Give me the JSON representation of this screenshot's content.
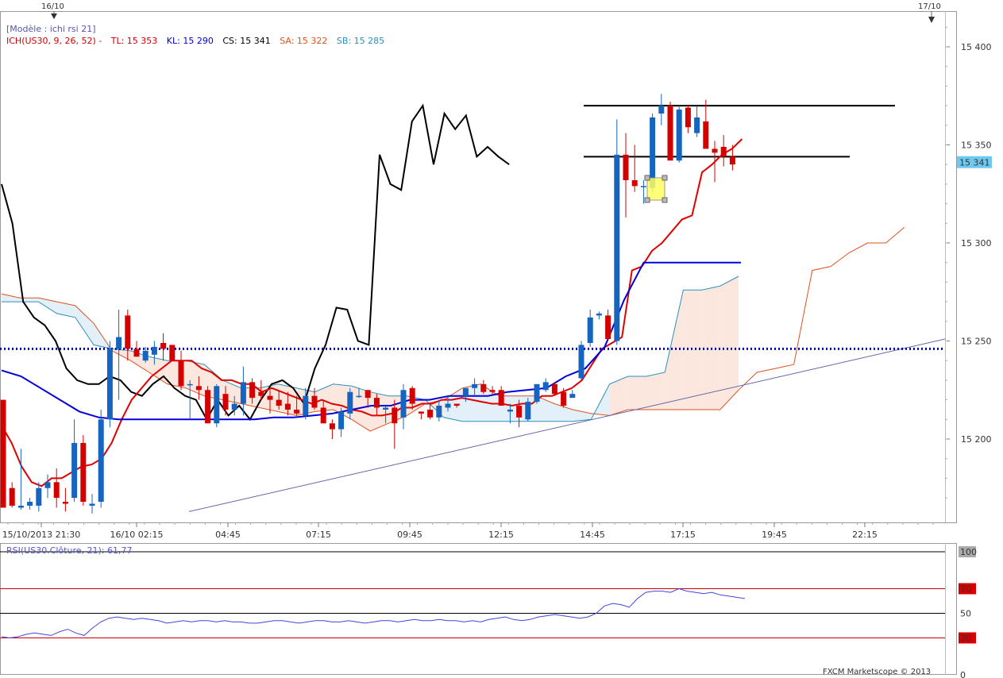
{
  "chart_data": [
    {
      "type": "candlestick",
      "legend_model": "[Modèle : ichi rsi 21]",
      "legend_items": [
        {
          "text": "ICH(US30, 9, 26, 52) -",
          "color": "#d40000"
        },
        {
          "text": "TL: 15 353",
          "color": "#d40000"
        },
        {
          "text": "KL: 15 290",
          "color": "#0000cc"
        },
        {
          "text": "CS: 15 341",
          "color": "#000000"
        },
        {
          "text": "SA: 15 322",
          "color": "#e05020"
        },
        {
          "text": "SB: 15 285",
          "color": "#2b8fc0"
        }
      ],
      "date_markers": [
        "16/10",
        "17/10"
      ],
      "x_ticks": [
        "15/10/2013 21:30",
        "16/10 02:15",
        "04:45",
        "07:15",
        "09:45",
        "12:15",
        "14:45",
        "17:15",
        "19:45",
        "22:15"
      ],
      "y_ticks": [
        "15 400",
        "15 350",
        "15 300",
        "15 250",
        "15 200"
      ],
      "y_tick_values": [
        15400,
        15350,
        15300,
        15250,
        15200
      ],
      "ylim": [
        15163,
        15420
      ],
      "current_price_label": "15 341",
      "current_price": 15341,
      "support_level": 15246,
      "resistance_lines": [
        15370,
        15344
      ],
      "bars_ohlc": [
        [
          15220,
          15220,
          15165,
          15165
        ],
        [
          15175,
          15178,
          15165,
          15166
        ],
        [
          15165,
          15195,
          15164,
          15166
        ],
        [
          15166,
          15170,
          15164,
          15168
        ],
        [
          15166,
          15178,
          15163,
          15175
        ],
        [
          15175,
          15182,
          15170,
          15178
        ],
        [
          15178,
          15185,
          15165,
          15170
        ],
        [
          15168,
          15175,
          15163,
          15167
        ],
        [
          15170,
          15210,
          15168,
          15198
        ],
        [
          15198,
          15202,
          15166,
          15168
        ],
        [
          15166,
          15172,
          15162,
          15167
        ],
        [
          15168,
          15215,
          15165,
          15210
        ],
        [
          15210,
          15250,
          15206,
          15246
        ],
        [
          15246,
          15266,
          15220,
          15252
        ],
        [
          15263,
          15266,
          15240,
          15246
        ],
        [
          15246,
          15250,
          15242,
          15242
        ],
        [
          15240,
          15247,
          15239,
          15245
        ],
        [
          15243,
          15250,
          15238,
          15247
        ],
        [
          15249,
          15254,
          15240,
          15246
        ],
        [
          15248,
          15247,
          15240,
          15240
        ],
        [
          15240,
          15245,
          15225,
          15227
        ],
        [
          15228,
          15230,
          15210,
          15228
        ],
        [
          15227,
          15232,
          15220,
          15225
        ],
        [
          15225,
          15227,
          15208,
          15208
        ],
        [
          15208,
          15228,
          15206,
          15227
        ],
        [
          15223,
          15227,
          15212,
          15215
        ],
        [
          15215,
          15222,
          15212,
          15218
        ],
        [
          15218,
          15237,
          15212,
          15229
        ],
        [
          15229,
          15231,
          15218,
          15221
        ],
        [
          15224,
          15230,
          15220,
          15222
        ],
        [
          15222,
          15225,
          15213,
          15220
        ],
        [
          15220,
          15225,
          15215,
          15217
        ],
        [
          15218,
          15224,
          15212,
          15215
        ],
        [
          15215,
          15222,
          15212,
          15213
        ],
        [
          15212,
          15226,
          15210,
          15222
        ],
        [
          15222,
          15226,
          15215,
          15216
        ],
        [
          15216,
          15220,
          15208,
          15208
        ],
        [
          15208,
          15210,
          15200,
          15205
        ],
        [
          15205,
          15216,
          15201,
          15214
        ],
        [
          15213,
          15226,
          15210,
          15224
        ],
        [
          15222,
          15226,
          15221,
          15222
        ],
        [
          15225,
          15225,
          15216,
          15221
        ],
        [
          15221,
          15223,
          15212,
          15216
        ],
        [
          15215,
          15217,
          15208,
          15216
        ],
        [
          15216,
          15220,
          15195,
          15208
        ],
        [
          15211,
          15228,
          15205,
          15225
        ],
        [
          15226,
          15227,
          15215,
          15218
        ],
        [
          15214,
          15214,
          15210,
          15213
        ],
        [
          15215,
          15218,
          15210,
          15211
        ],
        [
          15211,
          15220,
          15209,
          15217
        ],
        [
          15216,
          15222,
          15214,
          15218
        ],
        [
          15218,
          15218,
          15216,
          15217
        ],
        [
          15222,
          15226,
          15219,
          15226
        ],
        [
          15226,
          15231,
          15222,
          15228
        ],
        [
          15228,
          15230,
          15223,
          15224
        ],
        [
          15225,
          15227,
          15222,
          15224
        ],
        [
          15225,
          15227,
          15217,
          15217
        ],
        [
          15214,
          15218,
          15208,
          15215
        ],
        [
          15217,
          15220,
          15206,
          15211
        ],
        [
          15210,
          15221,
          15209,
          15219
        ],
        [
          15219,
          15228,
          15218,
          15228
        ],
        [
          15225,
          15231,
          15224,
          15229
        ],
        [
          15228,
          15229,
          15222,
          15223
        ],
        [
          15224,
          15226,
          15216,
          15217
        ],
        [
          15221,
          15225,
          15221,
          15223
        ],
        [
          15231,
          15250,
          15230,
          15248
        ],
        [
          15249,
          15266,
          15247,
          15262
        ],
        [
          15263,
          15265,
          15261,
          15264
        ],
        [
          15263,
          15266,
          15252,
          15251
        ],
        [
          15250,
          15363,
          15248,
          15345
        ],
        [
          15345,
          15356,
          15313,
          15332
        ],
        [
          15332,
          15350,
          15326,
          15329
        ],
        [
          15329,
          15332,
          15320,
          15329
        ],
        [
          15328,
          15366,
          15326,
          15364
        ],
        [
          15366,
          15376,
          15360,
          15370
        ],
        [
          15370,
          15372,
          15343,
          15342
        ],
        [
          15342,
          15370,
          15341,
          15368
        ],
        [
          15369,
          15370,
          15356,
          15359
        ],
        [
          15356,
          15370,
          15354,
          15364
        ],
        [
          15362,
          15373,
          15349,
          15348
        ],
        [
          15348,
          15352,
          15331,
          15346
        ],
        [
          15349,
          15355,
          15339,
          15344
        ],
        [
          15344,
          15350,
          15337,
          15340
        ]
      ],
      "tenkan": [
        15207,
        15198,
        15186,
        15178,
        15176,
        15180,
        15180,
        15183,
        15186,
        15187,
        15190,
        15198,
        15210,
        15220,
        15226,
        15232,
        15236,
        15240,
        15240,
        15240,
        15236,
        15234,
        15230,
        15230,
        15228,
        15228,
        15224,
        15226,
        15224,
        15222,
        15220,
        15218,
        15220,
        15218,
        15217,
        15215,
        15214,
        15212,
        15212,
        15213,
        15216,
        15216,
        15218,
        15218,
        15220,
        15220,
        15221,
        15220,
        15219,
        15218,
        15218,
        15217,
        15218,
        15218,
        15222,
        15222,
        15224,
        15226,
        15230,
        15238,
        15246,
        15249,
        15252,
        15286,
        15288,
        15296,
        15300,
        15306,
        15312,
        15314,
        15336,
        15340,
        15345,
        15348,
        15353
      ],
      "kijun": [
        15235,
        15232,
        15226,
        15220,
        15214,
        15211,
        15210,
        15210,
        15210,
        15210,
        15210,
        15210,
        15210,
        15210,
        15211,
        15211,
        15212,
        15213,
        15215,
        15217,
        15217,
        15220,
        15220,
        15222,
        15222,
        15222,
        15224,
        15225,
        15226,
        15232,
        15236,
        15247,
        15271,
        15290,
        15290,
        15290,
        15290,
        15290,
        15290
      ],
      "chikou": [
        15330,
        15310,
        15270,
        15262,
        15258,
        15250,
        15236,
        15230,
        15228,
        15228,
        15232,
        15230,
        15224,
        15222,
        15228,
        15232,
        15226,
        15222,
        15220,
        15210,
        15220,
        15212,
        15217,
        15210,
        15220,
        15228,
        15230,
        15226,
        15218,
        15236,
        15248,
        15267,
        15266,
        15250,
        15248,
        15345,
        15330,
        15327,
        15362,
        15370,
        15340,
        15366,
        15358,
        15365,
        15344,
        15349,
        15344,
        15340
      ],
      "senkou_a": [
        15274,
        15272,
        15272,
        15270,
        15268,
        15259,
        15245,
        15240,
        15234,
        15228,
        15226,
        15222,
        15220,
        15218,
        15216,
        15214,
        15212,
        15214,
        15215,
        15210,
        15204,
        15208,
        15212,
        15218,
        15220,
        15226,
        15228,
        15222,
        15222,
        15222,
        15218,
        15215,
        15213,
        15212,
        15215,
        15215,
        15215,
        15215,
        15215,
        15215,
        15225,
        15234,
        15236,
        15238,
        15286,
        15288,
        15295,
        15300,
        15300,
        15308
      ],
      "senkou_b": [
        15270,
        15270,
        15270,
        15264,
        15262,
        15248,
        15246,
        15245,
        15242,
        15240,
        15240,
        15238,
        15230,
        15226,
        15226,
        15228,
        15226,
        15224,
        15228,
        15227,
        15224,
        15222,
        15222,
        15220,
        15211,
        15209,
        15209,
        15209,
        15209,
        15209,
        15209,
        15209,
        15210,
        15228,
        15232,
        15232,
        15234,
        15276,
        15276,
        15278,
        15283
      ],
      "trendline": [
        15163,
        15251
      ],
      "rsi_label": "RSI(US30.Clôture, 21): 61,77",
      "rsi_ticks": [
        "100",
        "70",
        "50",
        "30",
        "0"
      ],
      "rsi_tick_values": [
        100,
        70,
        50,
        30,
        0
      ],
      "rsi_levels": [
        70,
        50,
        30
      ],
      "rsi": [
        31,
        30,
        31,
        33,
        34,
        33,
        32,
        35,
        37,
        34,
        32,
        38,
        43,
        46,
        47,
        46,
        45,
        46,
        45,
        44,
        42,
        43,
        44,
        43,
        44,
        44,
        43,
        44,
        43,
        43,
        42,
        42,
        43,
        44,
        44,
        43,
        42,
        43,
        44,
        44,
        43,
        43,
        44,
        43,
        42,
        43,
        44,
        44,
        43,
        44,
        45,
        44,
        44,
        45,
        44,
        44,
        43,
        44,
        43,
        45,
        46,
        47,
        45,
        44,
        45,
        47,
        48,
        49,
        48,
        47,
        46,
        47,
        50,
        56,
        58,
        57,
        55,
        62,
        67,
        68,
        68,
        67,
        70,
        68,
        67,
        66,
        67,
        65,
        64,
        63,
        62
      ],
      "watermark": "FXCM Marketscope © 2013"
    }
  ]
}
